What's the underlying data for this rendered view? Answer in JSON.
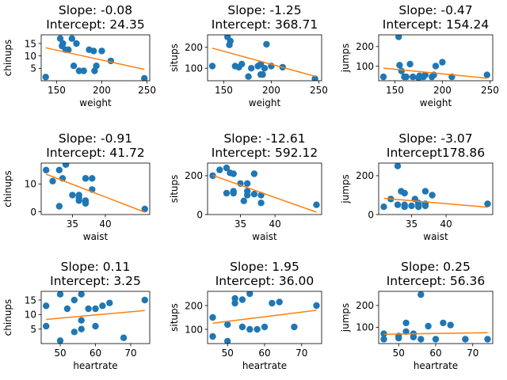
{
  "colors": {
    "points": "#1f77b4",
    "fit_line": "#ff7f0e",
    "axes": "#000000",
    "background": "#ffffff"
  },
  "chart_data": [
    {
      "type": "scatter",
      "title_lines": [
        "Slope: -0.08",
        "Intercept: 24.35"
      ],
      "xlabel": "weight",
      "ylabel": "chinups",
      "xlim": [
        133,
        253
      ],
      "ylim": [
        0,
        18.5
      ],
      "xticks": [
        150,
        200,
        250
      ],
      "yticks": [
        5,
        10,
        15
      ],
      "x": [
        138,
        154,
        156,
        157,
        160,
        163,
        167,
        169,
        172,
        175,
        180,
        186,
        191,
        192,
        194,
        200,
        210,
        247
      ],
      "y": [
        1.5,
        17,
        14,
        15,
        12.5,
        12.5,
        17,
        6,
        15,
        4,
        4,
        12.5,
        12,
        4,
        6,
        12,
        8,
        1
      ],
      "fit": {
        "slope": -0.08,
        "intercept": 24.35,
        "x_range": [
          138,
          247
        ]
      }
    },
    {
      "type": "scatter",
      "title_lines": [
        "Slope: -1.25",
        "Intercept: 368.71"
      ],
      "xlabel": "weight",
      "ylabel": "situps",
      "xlim": [
        133,
        253
      ],
      "ylim": [
        40,
        260
      ],
      "xticks": [
        150,
        200,
        250
      ],
      "yticks": [
        100,
        200
      ],
      "x": [
        138,
        154,
        156,
        157,
        162,
        166,
        169,
        176,
        179,
        186,
        189,
        189,
        191,
        193,
        195,
        200,
        212,
        246
      ],
      "y": [
        110,
        250,
        212,
        230,
        110,
        105,
        120,
        60,
        100,
        110,
        120,
        70,
        70,
        100,
        215,
        110,
        105,
        50
      ],
      "fit": {
        "slope": -1.25,
        "intercept": 368.71,
        "x_range": [
          138,
          247
        ]
      }
    },
    {
      "type": "scatter",
      "title_lines": [
        "Slope: -0.47",
        "Intercept: 154.24"
      ],
      "xlabel": "weight",
      "ylabel": "jumps",
      "xlim": [
        133,
        253
      ],
      "ylim": [
        25,
        260
      ],
      "xticks": [
        150,
        200,
        250
      ],
      "yticks": [
        100,
        200
      ],
      "x": [
        138,
        154,
        155,
        157,
        160,
        162,
        166,
        169,
        175,
        176,
        180,
        182,
        189,
        191,
        193,
        200,
        210,
        247
      ],
      "y": [
        45,
        250,
        105,
        75,
        45,
        45,
        110,
        45,
        40,
        50,
        45,
        55,
        45,
        55,
        100,
        120,
        45,
        55
      ],
      "fit": {
        "slope": -0.47,
        "intercept": 154.24,
        "x_range": [
          138,
          247
        ]
      }
    },
    {
      "type": "scatter",
      "title_lines": [
        "Slope: -0.91",
        "Intercept: 41.72"
      ],
      "xlabel": "waist",
      "ylabel": "chinups",
      "xlim": [
        30.25,
        46.75
      ],
      "ylim": [
        -1,
        17.5
      ],
      "xticks": [
        35,
        40
      ],
      "yticks": [
        0,
        10
      ],
      "x": [
        31,
        32,
        33,
        33,
        33.5,
        34,
        34,
        35,
        36,
        36,
        36,
        37,
        37,
        37,
        37,
        38,
        38,
        46
      ],
      "y": [
        15,
        11,
        2,
        15,
        12,
        17,
        17,
        6,
        4,
        6,
        5,
        12,
        4,
        3,
        12,
        12,
        8,
        1
      ],
      "fit": {
        "slope": -0.91,
        "intercept": 41.72,
        "x_range": [
          31,
          46
        ]
      }
    },
    {
      "type": "scatter",
      "title_lines": [
        "Slope: -12.61",
        "Intercept: 592.12"
      ],
      "xlabel": "waist",
      "ylabel": "situps",
      "xlim": [
        30.25,
        46.75
      ],
      "ylim": [
        0,
        265
      ],
      "xticks": [
        35,
        40
      ],
      "yticks": [
        0,
        200
      ],
      "x": [
        31,
        32,
        33,
        33,
        33.5,
        34,
        34,
        34,
        35,
        35.5,
        36,
        36,
        36,
        37,
        37,
        38,
        38,
        46
      ],
      "y": [
        200,
        230,
        110,
        240,
        215,
        120,
        210,
        110,
        160,
        70,
        160,
        100,
        120,
        210,
        105,
        60,
        100,
        50
      ],
      "fit": {
        "slope": -12.61,
        "intercept": 592.12,
        "x_range": [
          31,
          46
        ]
      }
    },
    {
      "type": "scatter",
      "title_lines": [
        "Slope: -3.07",
        "Intercept178.86"
      ],
      "xlabel": "waist",
      "ylabel": "jumps",
      "xlim": [
        30.25,
        46.75
      ],
      "ylim": [
        0,
        265
      ],
      "xticks": [
        35,
        40
      ],
      "yticks": [
        0,
        200
      ],
      "x": [
        31,
        32,
        33,
        33,
        33.5,
        34,
        34,
        34,
        35,
        35.5,
        36,
        36,
        36,
        37,
        37,
        37,
        38,
        46
      ],
      "y": [
        40,
        80,
        250,
        50,
        120,
        40,
        110,
        50,
        45,
        80,
        40,
        60,
        50,
        120,
        45,
        55,
        100,
        55
      ],
      "fit": {
        "slope": -3.07,
        "intercept": 178.86,
        "x_range": [
          31,
          46
        ]
      }
    },
    {
      "type": "scatter",
      "title_lines": [
        "Slope: 0.11",
        "Intercept: 3.25"
      ],
      "xlabel": "heartrate",
      "ylabel": "chinups",
      "xlim": [
        44.6,
        75.4
      ],
      "ylim": [
        0,
        18
      ],
      "xticks": [
        50,
        60,
        70
      ],
      "yticks": [
        5,
        10,
        15
      ],
      "x": [
        46,
        46,
        50,
        50,
        52,
        54,
        54,
        56,
        56,
        56,
        58,
        60,
        60,
        62,
        64,
        68,
        74
      ],
      "y": [
        13,
        6,
        1,
        17,
        12,
        4,
        15,
        5,
        8,
        17,
        12,
        6,
        12,
        13,
        14,
        2,
        15
      ],
      "fit": {
        "slope": 0.11,
        "intercept": 3.25,
        "x_range": [
          46,
          74
        ]
      }
    },
    {
      "type": "scatter",
      "title_lines": [
        "Slope: 1.95",
        "Intercept: 36.00"
      ],
      "xlabel": "heartrate",
      "ylabel": "situps",
      "xlim": [
        44.6,
        75.4
      ],
      "ylim": [
        40,
        260
      ],
      "xticks": [
        50,
        60,
        70
      ],
      "yticks": [
        100,
        200
      ],
      "x": [
        46,
        46,
        50,
        50,
        52,
        52,
        54,
        54,
        56,
        56,
        58,
        60,
        62,
        64,
        68,
        74
      ],
      "y": [
        150,
        70,
        120,
        50,
        230,
        210,
        110,
        225,
        250,
        100,
        100,
        110,
        210,
        215,
        110,
        200
      ],
      "fit": {
        "slope": 1.95,
        "intercept": 36.0,
        "x_range": [
          46,
          74
        ]
      }
    },
    {
      "type": "scatter",
      "title_lines": [
        "Slope: 0.25",
        "Intercept: 56.36"
      ],
      "xlabel": "heartrate",
      "ylabel": "jumps",
      "xlim": [
        44.6,
        75.4
      ],
      "ylim": [
        25,
        265
      ],
      "xticks": [
        50,
        60,
        70
      ],
      "yticks": [
        100,
        200
      ],
      "x": [
        46,
        46,
        50,
        50,
        52,
        52,
        54,
        54,
        56,
        56,
        58,
        60,
        62,
        64,
        68,
        74
      ],
      "y": [
        45,
        70,
        50,
        60,
        120,
        80,
        55,
        70,
        250,
        45,
        105,
        45,
        120,
        110,
        45,
        45
      ],
      "fit": {
        "slope": 0.25,
        "intercept": 56.36,
        "x_range": [
          46,
          74
        ]
      }
    }
  ]
}
